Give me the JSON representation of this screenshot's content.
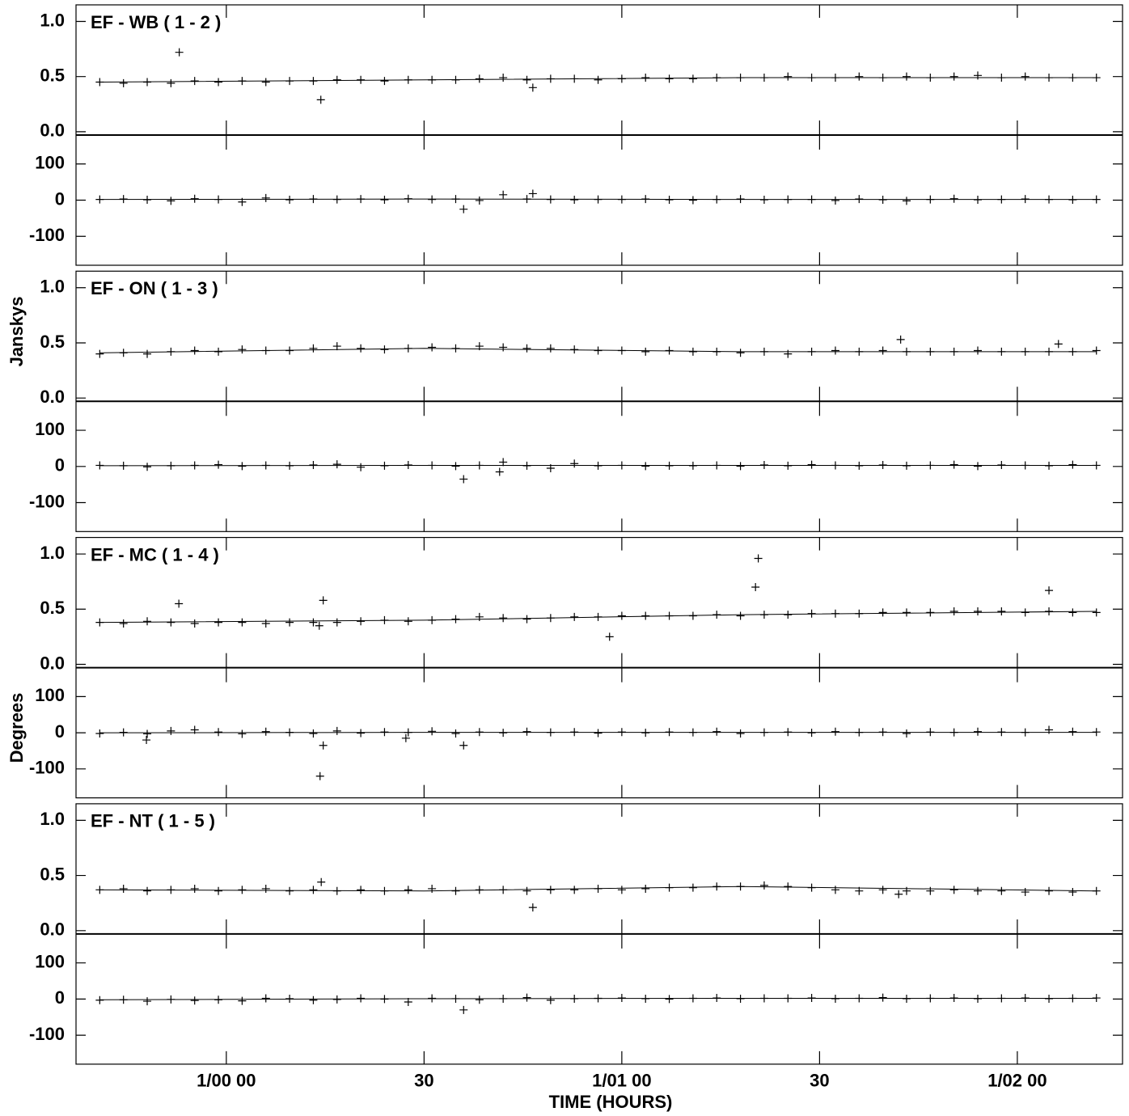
{
  "xlabel": "TIME (HOURS)",
  "ylabel": "Janskys",
  "y2label": "Degrees",
  "chart_data": [
    {
      "type": "scatter",
      "title": "EF - WB ( 1 - 2 )",
      "xlim": [
        -0.38,
        2.266
      ],
      "xticks": [
        {
          "value": 0,
          "label": "1/00 00"
        },
        {
          "value": 0.5,
          "label": "30"
        },
        {
          "value": 1,
          "label": "1/01 00"
        },
        {
          "value": 1.5,
          "label": "30"
        },
        {
          "value": 2,
          "label": "1/02 00"
        }
      ],
      "ylim": [
        -0.03,
        1.15
      ],
      "yticks": [
        {
          "value": 0,
          "label": "0.0"
        },
        0.5,
        {
          "value": 1,
          "label": "1.0"
        }
      ],
      "y2lim": [
        -180,
        180
      ],
      "y2ticks": [
        -100,
        0,
        100
      ],
      "series": [
        {
          "x": [
            -0.32,
            -0.26,
            -0.2,
            -0.14,
            -0.08,
            -0.02,
            0.04,
            0.1,
            0.16,
            0.22,
            0.28,
            0.34,
            0.4,
            0.46,
            0.52,
            0.58,
            0.64,
            0.7,
            0.76,
            0.82,
            0.88,
            0.94,
            1.0,
            1.06,
            1.12,
            1.18,
            1.24,
            1.3,
            1.36,
            1.42,
            1.48,
            1.54,
            1.6,
            1.66,
            1.72,
            1.78,
            1.84,
            1.9,
            1.96,
            2.02,
            2.08,
            2.14,
            2.2,
            -0.119,
            0.239,
            0.775
          ],
          "values": [
            0.45,
            0.44,
            0.45,
            0.44,
            0.46,
            0.45,
            0.46,
            0.45,
            0.46,
            0.46,
            0.47,
            0.47,
            0.46,
            0.47,
            0.47,
            0.47,
            0.48,
            0.49,
            0.47,
            0.48,
            0.48,
            0.47,
            0.48,
            0.49,
            0.48,
            0.48,
            0.49,
            0.49,
            0.49,
            0.5,
            0.49,
            0.49,
            0.5,
            0.49,
            0.5,
            0.49,
            0.5,
            0.51,
            0.49,
            0.5,
            0.49,
            0.49,
            0.49,
            0.72,
            0.29,
            0.4
          ]
        },
        {
          "axis": "y2",
          "x": [
            -0.32,
            -0.26,
            -0.2,
            -0.14,
            -0.08,
            -0.02,
            0.04,
            0.1,
            0.16,
            0.22,
            0.28,
            0.34,
            0.4,
            0.46,
            0.52,
            0.58,
            0.64,
            0.7,
            0.76,
            0.82,
            0.88,
            0.94,
            1.0,
            1.06,
            1.12,
            1.18,
            1.24,
            1.3,
            1.36,
            1.42,
            1.48,
            1.54,
            1.6,
            1.66,
            1.72,
            1.78,
            1.84,
            1.9,
            1.96,
            2.02,
            2.08,
            2.14,
            2.2,
            0.6,
            0.775
          ],
          "values": [
            2,
            3,
            1,
            -2,
            4,
            2,
            -5,
            6,
            1,
            3,
            2,
            3,
            1,
            4,
            2,
            3,
            -1,
            15,
            3,
            2,
            1,
            2,
            2,
            3,
            1,
            0,
            2,
            3,
            1,
            2,
            2,
            -1,
            3,
            1,
            -2,
            2,
            4,
            1,
            2,
            3,
            2,
            1,
            2,
            -25,
            18
          ]
        },
        {
          "type": "line",
          "x": [
            -0.32,
            0.5,
            1.3,
            2.2
          ],
          "values": [
            0.45,
            0.47,
            0.49,
            0.49
          ]
        },
        {
          "type": "line",
          "axis": "y2",
          "x": [
            -0.32,
            0.5,
            1.3,
            2.2
          ],
          "values": [
            2,
            3,
            2,
            2
          ]
        }
      ]
    },
    {
      "type": "scatter",
      "title": "EF - ON ( 1 - 3 )",
      "xlim": [
        -0.38,
        2.266
      ],
      "xticks": [
        {
          "value": 0,
          "label": "1/00 00"
        },
        {
          "value": 0.5,
          "label": "30"
        },
        {
          "value": 1,
          "label": "1/01 00"
        },
        {
          "value": 1.5,
          "label": "30"
        },
        {
          "value": 2,
          "label": "1/02 00"
        }
      ],
      "ylim": [
        -0.03,
        1.15
      ],
      "yticks": [
        {
          "value": 0,
          "label": "0.0"
        },
        0.5,
        {
          "value": 1,
          "label": "1.0"
        }
      ],
      "y2lim": [
        -180,
        180
      ],
      "y2ticks": [
        -100,
        0,
        100
      ],
      "series": [
        {
          "x": [
            -0.32,
            -0.26,
            -0.2,
            -0.14,
            -0.08,
            -0.02,
            0.04,
            0.1,
            0.16,
            0.22,
            0.28,
            0.34,
            0.4,
            0.46,
            0.52,
            0.58,
            0.64,
            0.7,
            0.76,
            0.82,
            0.88,
            0.94,
            1.0,
            1.06,
            1.12,
            1.18,
            1.24,
            1.3,
            1.36,
            1.42,
            1.48,
            1.54,
            1.6,
            1.66,
            1.72,
            1.78,
            1.84,
            1.9,
            1.96,
            2.02,
            2.08,
            2.14,
            2.2,
            1.705,
            2.104
          ],
          "values": [
            0.4,
            0.41,
            0.4,
            0.42,
            0.43,
            0.42,
            0.44,
            0.43,
            0.43,
            0.45,
            0.47,
            0.45,
            0.44,
            0.45,
            0.46,
            0.45,
            0.47,
            0.46,
            0.45,
            0.45,
            0.44,
            0.43,
            0.43,
            0.42,
            0.43,
            0.42,
            0.42,
            0.41,
            0.42,
            0.4,
            0.42,
            0.43,
            0.42,
            0.43,
            0.42,
            0.42,
            0.42,
            0.43,
            0.42,
            0.42,
            0.42,
            0.42,
            0.43,
            0.53,
            0.49
          ]
        },
        {
          "axis": "y2",
          "x": [
            -0.32,
            -0.26,
            -0.2,
            -0.14,
            -0.08,
            -0.02,
            0.04,
            0.1,
            0.16,
            0.22,
            0.28,
            0.34,
            0.4,
            0.46,
            0.52,
            0.58,
            0.64,
            0.7,
            0.76,
            0.82,
            0.88,
            0.94,
            1.0,
            1.06,
            1.12,
            1.18,
            1.24,
            1.3,
            1.36,
            1.42,
            1.48,
            1.54,
            1.6,
            1.66,
            1.72,
            1.78,
            1.84,
            1.9,
            1.96,
            2.02,
            2.08,
            2.14,
            2.2,
            0.6,
            0.691
          ],
          "values": [
            3,
            2,
            -1,
            2,
            3,
            5,
            1,
            3,
            2,
            4,
            6,
            -2,
            2,
            4,
            3,
            1,
            3,
            12,
            2,
            -5,
            8,
            2,
            3,
            1,
            2,
            2,
            3,
            1,
            4,
            2,
            5,
            3,
            2,
            4,
            2,
            3,
            5,
            1,
            4,
            3,
            2,
            5,
            3,
            -35,
            -15
          ]
        },
        {
          "type": "line",
          "x": [
            -0.32,
            0.5,
            1.3,
            2.2
          ],
          "values": [
            0.41,
            0.45,
            0.42,
            0.42
          ]
        },
        {
          "type": "line",
          "axis": "y2",
          "x": [
            -0.32,
            0.5,
            1.3,
            2.2
          ],
          "values": [
            2,
            3,
            3,
            3
          ]
        }
      ]
    },
    {
      "type": "scatter",
      "title": "EF - MC ( 1 - 4 )",
      "xlim": [
        -0.38,
        2.266
      ],
      "xticks": [
        {
          "value": 0,
          "label": "1/00 00"
        },
        {
          "value": 0.5,
          "label": "30"
        },
        {
          "value": 1,
          "label": "1/01 00"
        },
        {
          "value": 1.5,
          "label": "30"
        },
        {
          "value": 2,
          "label": "1/02 00"
        }
      ],
      "ylim": [
        -0.03,
        1.15
      ],
      "yticks": [
        {
          "value": 0,
          "label": "0.0"
        },
        0.5,
        {
          "value": 1,
          "label": "1.0"
        }
      ],
      "y2lim": [
        -180,
        180
      ],
      "y2ticks": [
        -100,
        0,
        100
      ],
      "series": [
        {
          "x": [
            -0.32,
            -0.26,
            -0.2,
            -0.14,
            -0.08,
            -0.02,
            0.04,
            0.1,
            0.16,
            0.22,
            0.28,
            0.34,
            0.4,
            0.46,
            0.52,
            0.58,
            0.64,
            0.7,
            0.76,
            0.82,
            0.88,
            0.94,
            1.0,
            1.06,
            1.12,
            1.18,
            1.24,
            1.3,
            1.36,
            1.42,
            1.48,
            1.54,
            1.6,
            1.66,
            1.72,
            1.78,
            1.84,
            1.9,
            1.96,
            2.02,
            2.08,
            2.14,
            2.2,
            -0.12,
            0.235,
            0.245,
            0.969,
            1.345,
            1.338,
            2.08
          ],
          "values": [
            0.38,
            0.37,
            0.39,
            0.38,
            0.37,
            0.38,
            0.38,
            0.37,
            0.38,
            0.38,
            0.38,
            0.39,
            0.4,
            0.39,
            0.4,
            0.41,
            0.43,
            0.42,
            0.41,
            0.42,
            0.43,
            0.43,
            0.44,
            0.44,
            0.44,
            0.44,
            0.45,
            0.44,
            0.45,
            0.45,
            0.46,
            0.46,
            0.46,
            0.47,
            0.47,
            0.47,
            0.48,
            0.48,
            0.48,
            0.47,
            0.48,
            0.47,
            0.47,
            0.55,
            0.35,
            0.58,
            0.25,
            0.96,
            0.7,
            0.67
          ]
        },
        {
          "axis": "y2",
          "x": [
            -0.32,
            -0.26,
            -0.2,
            -0.14,
            -0.08,
            -0.02,
            0.04,
            0.1,
            0.16,
            0.22,
            0.28,
            0.34,
            0.4,
            0.46,
            0.52,
            0.58,
            0.64,
            0.7,
            0.76,
            0.82,
            0.88,
            0.94,
            1.0,
            1.06,
            1.12,
            1.18,
            1.24,
            1.3,
            1.36,
            1.42,
            1.48,
            1.54,
            1.6,
            1.66,
            1.72,
            1.78,
            1.84,
            1.9,
            1.96,
            2.02,
            2.08,
            2.14,
            2.2,
            -0.202,
            0.237,
            0.245,
            0.454,
            0.6
          ],
          "values": [
            -2,
            1,
            -3,
            5,
            8,
            2,
            -3,
            3,
            1,
            -2,
            5,
            -1,
            2,
            1,
            4,
            -2,
            2,
            0,
            3,
            1,
            2,
            -1,
            2,
            0,
            2,
            1,
            3,
            -2,
            1,
            2,
            0,
            3,
            1,
            2,
            -2,
            2,
            1,
            3,
            2,
            1,
            8,
            3,
            2,
            -20,
            -120,
            -35,
            -15,
            -35
          ]
        },
        {
          "type": "line",
          "x": [
            -0.32,
            0.5,
            1.3,
            2.2
          ],
          "values": [
            0.38,
            0.4,
            0.45,
            0.48
          ]
        },
        {
          "type": "line",
          "axis": "y2",
          "x": [
            -0.32,
            0.5,
            1.3,
            2.2
          ],
          "values": [
            0,
            1,
            1,
            1
          ]
        }
      ]
    },
    {
      "type": "scatter",
      "title": "EF - NT ( 1 - 5 )",
      "xlim": [
        -0.38,
        2.266
      ],
      "xticks": [
        {
          "value": 0,
          "label": "1/00 00"
        },
        {
          "value": 0.5,
          "label": "30"
        },
        {
          "value": 1,
          "label": "1/01 00"
        },
        {
          "value": 1.5,
          "label": "30"
        },
        {
          "value": 2,
          "label": "1/02 00"
        }
      ],
      "ylim": [
        -0.03,
        1.15
      ],
      "yticks": [
        {
          "value": 0,
          "label": "0.0"
        },
        0.5,
        {
          "value": 1,
          "label": "1.0"
        }
      ],
      "y2lim": [
        -180,
        180
      ],
      "y2ticks": [
        -100,
        0,
        100
      ],
      "series": [
        {
          "x": [
            -0.32,
            -0.26,
            -0.2,
            -0.14,
            -0.08,
            -0.02,
            0.04,
            0.1,
            0.16,
            0.22,
            0.28,
            0.34,
            0.4,
            0.46,
            0.52,
            0.58,
            0.64,
            0.7,
            0.76,
            0.82,
            0.88,
            0.94,
            1.0,
            1.06,
            1.12,
            1.18,
            1.24,
            1.3,
            1.36,
            1.42,
            1.48,
            1.54,
            1.6,
            1.66,
            1.72,
            1.78,
            1.84,
            1.9,
            1.96,
            2.02,
            2.08,
            2.14,
            2.2,
            0.775,
            0.24,
            1.7
          ],
          "values": [
            0.37,
            0.38,
            0.36,
            0.37,
            0.38,
            0.36,
            0.37,
            0.38,
            0.36,
            0.37,
            0.36,
            0.37,
            0.36,
            0.37,
            0.38,
            0.36,
            0.37,
            0.37,
            0.36,
            0.37,
            0.37,
            0.38,
            0.37,
            0.38,
            0.39,
            0.39,
            0.4,
            0.4,
            0.41,
            0.4,
            0.39,
            0.37,
            0.36,
            0.37,
            0.36,
            0.36,
            0.37,
            0.36,
            0.36,
            0.35,
            0.36,
            0.35,
            0.36,
            0.21,
            0.44,
            0.33
          ]
        },
        {
          "axis": "y2",
          "x": [
            -0.32,
            -0.26,
            -0.2,
            -0.14,
            -0.08,
            -0.02,
            0.04,
            0.1,
            0.16,
            0.22,
            0.28,
            0.34,
            0.4,
            0.46,
            0.52,
            0.58,
            0.64,
            0.7,
            0.76,
            0.82,
            0.88,
            0.94,
            1.0,
            1.06,
            1.12,
            1.18,
            1.24,
            1.3,
            1.36,
            1.42,
            1.48,
            1.54,
            1.6,
            1.66,
            1.72,
            1.78,
            1.84,
            1.9,
            1.96,
            2.02,
            2.08,
            2.14,
            2.2,
            0.6
          ],
          "values": [
            -3,
            -2,
            -6,
            -1,
            -4,
            -2,
            -5,
            2,
            1,
            -3,
            -1,
            2,
            0,
            -8,
            2,
            1,
            -2,
            1,
            4,
            -3,
            1,
            2,
            3,
            1,
            0,
            2,
            3,
            1,
            2,
            2,
            3,
            1,
            2,
            4,
            1,
            2,
            3,
            1,
            2,
            3,
            1,
            2,
            3,
            -30
          ]
        },
        {
          "type": "line",
          "x": [
            -0.32,
            0.5,
            1.3,
            2.2
          ],
          "values": [
            0.37,
            0.36,
            0.4,
            0.36
          ]
        },
        {
          "type": "line",
          "axis": "y2",
          "x": [
            -0.32,
            0.5,
            1.3,
            2.2
          ],
          "values": [
            -2,
            1,
            2,
            2
          ]
        }
      ]
    }
  ]
}
